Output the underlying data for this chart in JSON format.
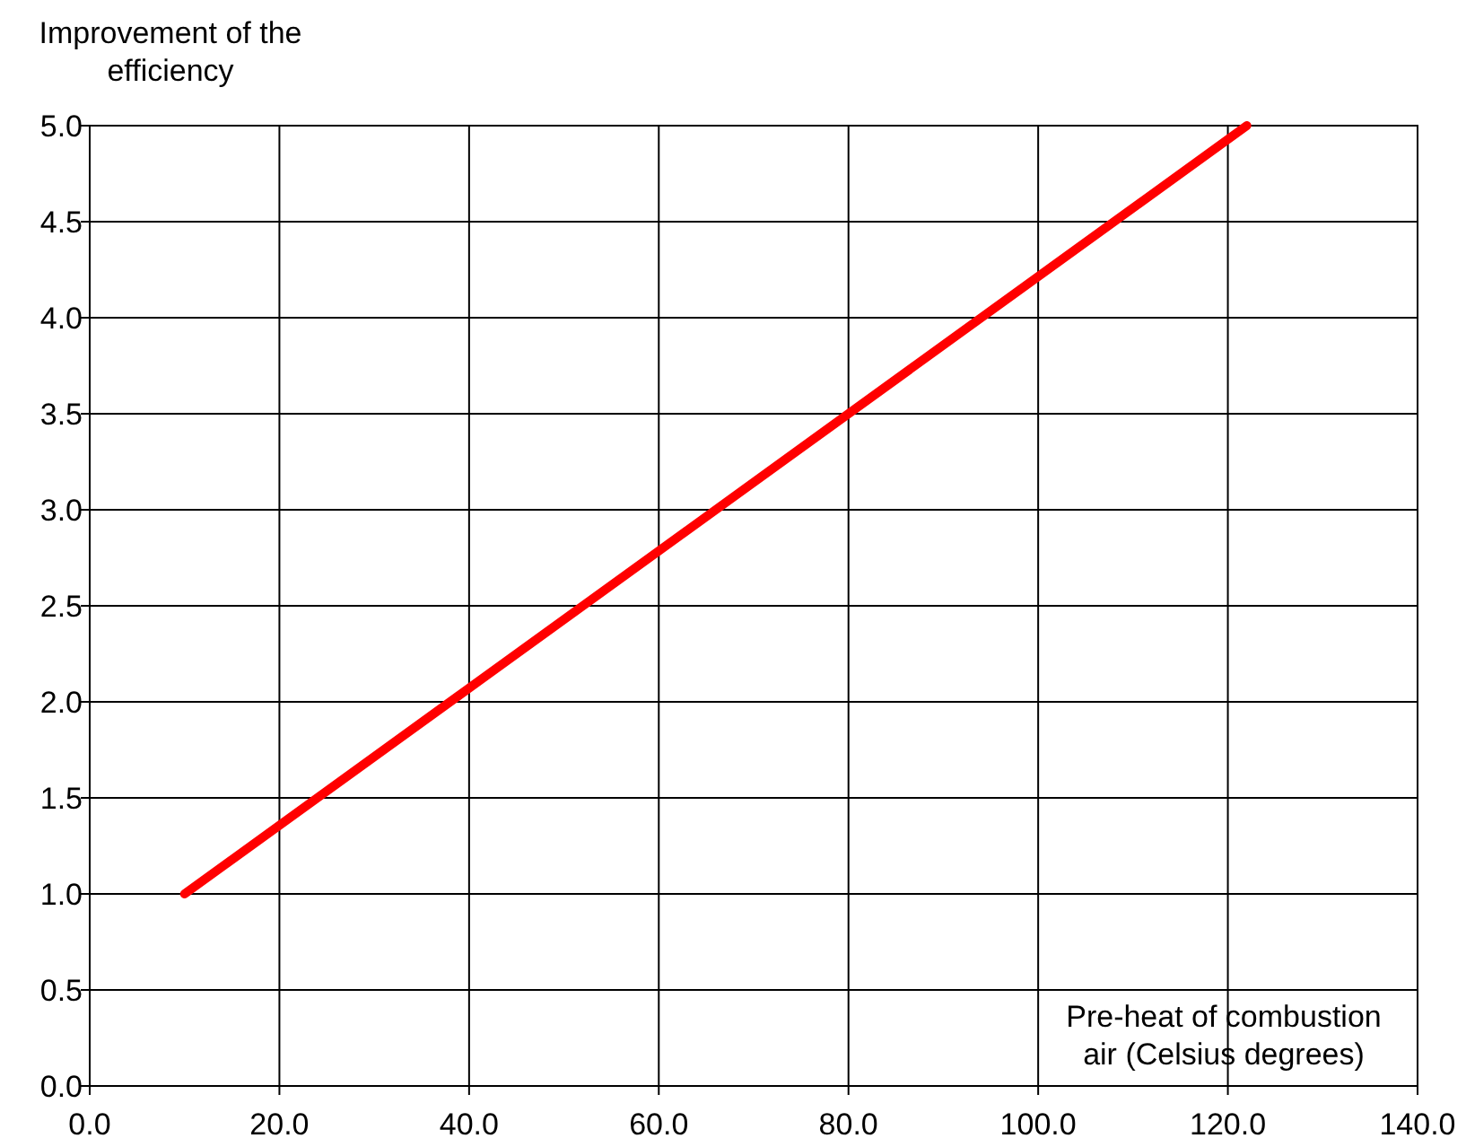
{
  "chart_data": {
    "type": "line",
    "xlabel": "Pre-heat of combustion air (Celsius degrees)",
    "ylabel": "Improvement of the efficiency",
    "series": [
      {
        "color": "#ff0000",
        "x": [
          10,
          122
        ],
        "values": [
          1,
          5
        ]
      }
    ],
    "xlim": [
      0,
      140
    ],
    "ylim": [
      0,
      5
    ],
    "xticks": [
      {
        "value": 0,
        "label": "0.0"
      },
      {
        "value": 20,
        "label": "20.0"
      },
      {
        "value": 40,
        "label": "40.0"
      },
      {
        "value": 60,
        "label": "60.0"
      },
      {
        "value": 80,
        "label": "80.0"
      },
      {
        "value": 100,
        "label": "100.0"
      },
      {
        "value": 120,
        "label": "120.0"
      },
      {
        "value": 140,
        "label": "140.0"
      }
    ],
    "yticks": [
      {
        "value": 0,
        "label": "0.0"
      },
      {
        "value": 0.5,
        "label": "0.5"
      },
      {
        "value": 1,
        "label": "1.0"
      },
      {
        "value": 1.5,
        "label": "1.5"
      },
      {
        "value": 2,
        "label": "2.0"
      },
      {
        "value": 2.5,
        "label": "2.5"
      },
      {
        "value": 3,
        "label": "3.0"
      },
      {
        "value": 3.5,
        "label": "3.5"
      },
      {
        "value": 4,
        "label": "4.0"
      },
      {
        "value": 4.5,
        "label": "4.5"
      },
      {
        "value": 5,
        "label": "5.0"
      }
    ],
    "grid": true,
    "marker": "none",
    "line_style": "solid"
  }
}
